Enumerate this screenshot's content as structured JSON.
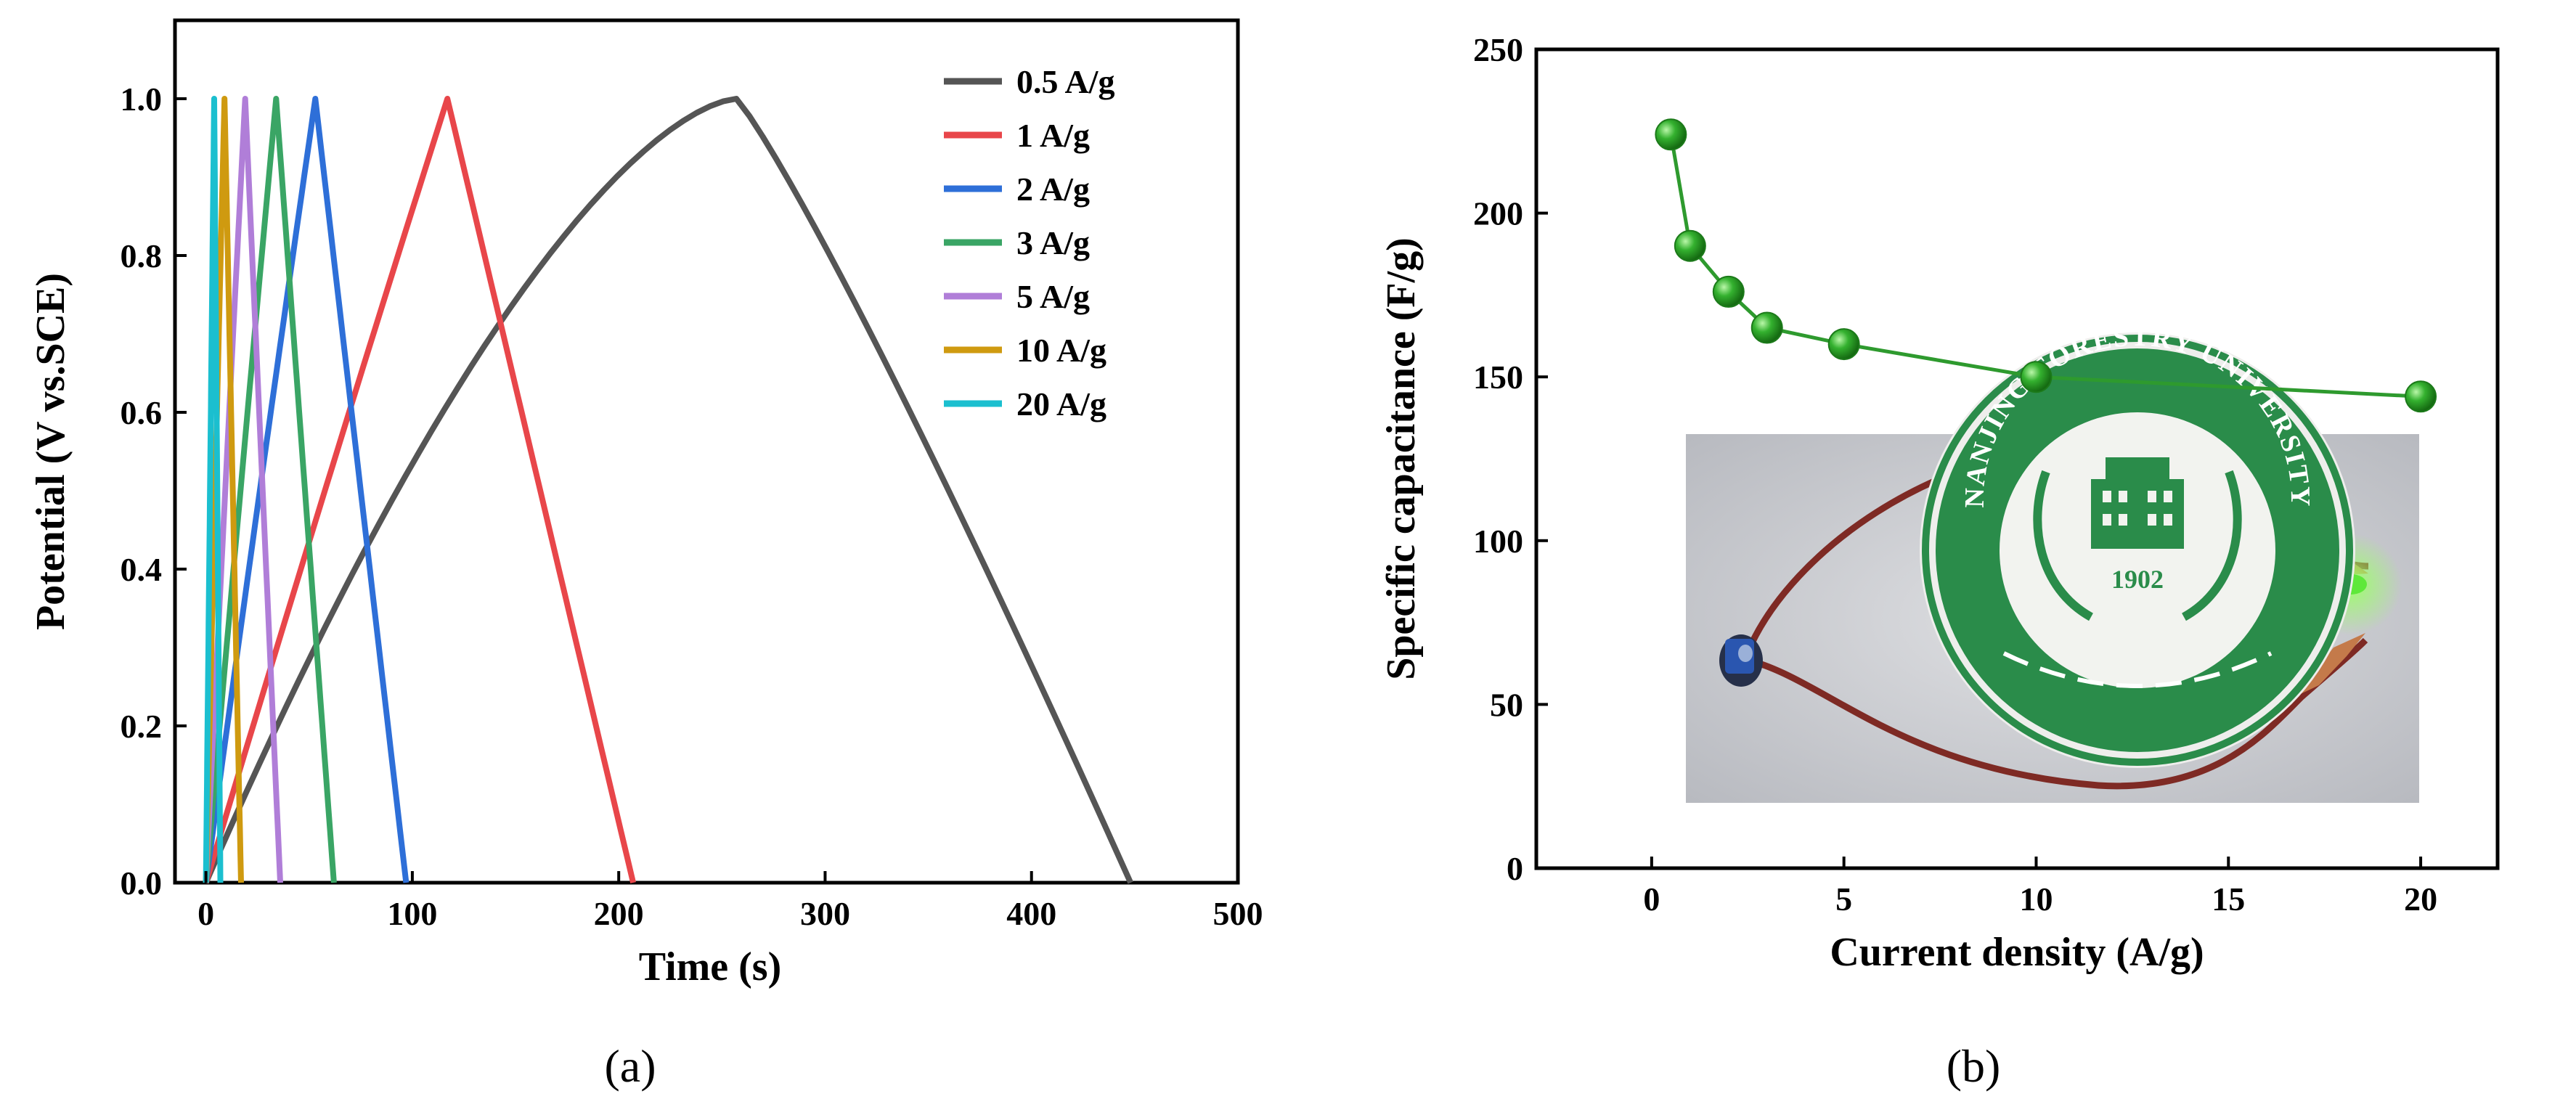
{
  "chart_data": [
    {
      "type": "line",
      "panel_label": "(a)",
      "xlabel": "Time (s)",
      "ylabel": "Potential (V vs.SCE)",
      "xlim": [
        -15,
        500
      ],
      "ylim": [
        0,
        1.1
      ],
      "xticks": [
        0,
        100,
        200,
        300,
        400,
        500
      ],
      "xtick_labels": [
        "0",
        "100",
        "200",
        "300",
        "400",
        "500"
      ],
      "yticks": [
        0.0,
        0.2,
        0.4,
        0.6,
        0.8,
        1.0
      ],
      "ytick_labels": [
        "0.0",
        "0.2",
        "0.4",
        "0.6",
        "0.8",
        "1.0"
      ],
      "legend_position": "top-right",
      "series": [
        {
          "name": "0.5 A/g",
          "color": "#555555",
          "peak_time": 257,
          "end_time": 448
        },
        {
          "name": "1 A/g",
          "color": "#e8464a",
          "peak_time": 117,
          "end_time": 207
        },
        {
          "name": "2 A/g",
          "color": "#2e6fd8",
          "peak_time": 53,
          "end_time": 97
        },
        {
          "name": "3 A/g",
          "color": "#3aa565",
          "peak_time": 34,
          "end_time": 62
        },
        {
          "name": "5 A/g",
          "color": "#b07ed8",
          "peak_time": 19,
          "end_time": 36
        },
        {
          "name": "10 A/g",
          "color": "#cf9a10",
          "peak_time": 9,
          "end_time": 17
        },
        {
          "name": "20 A/g",
          "color": "#1bbfcf",
          "peak_time": 4,
          "end_time": 7
        }
      ]
    },
    {
      "type": "scatter",
      "panel_label": "(b)",
      "xlabel": "Current density (A/g)",
      "ylabel": "Specific capacitance (F/g)",
      "xlim": [
        -3,
        22
      ],
      "ylim": [
        0,
        250
      ],
      "xticks": [
        0,
        5,
        10,
        15,
        20
      ],
      "xtick_labels": [
        "0",
        "5",
        "10",
        "15",
        "20"
      ],
      "yticks": [
        0,
        50,
        100,
        150,
        200,
        250
      ],
      "ytick_labels": [
        "0",
        "50",
        "100",
        "150",
        "200",
        "250"
      ],
      "x": [
        0.5,
        1,
        2,
        3,
        5,
        10,
        20
      ],
      "y": [
        224,
        190,
        176,
        165,
        160,
        150,
        144
      ],
      "color": "#2e9a2e",
      "inset": {
        "seal_text": "NANJING FORESTRY UNIVERSITY",
        "year": "1902"
      }
    }
  ]
}
